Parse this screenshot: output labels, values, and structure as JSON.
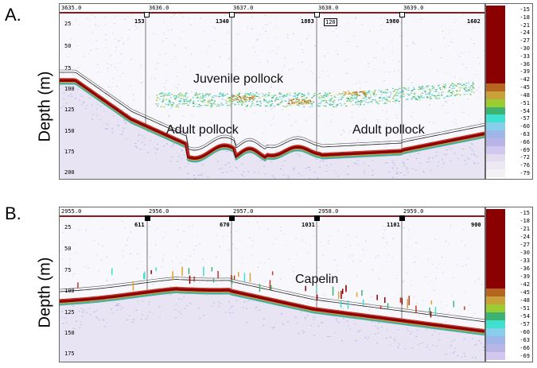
{
  "panelA": {
    "letter": "A.",
    "ylabel": "Depth (m)",
    "intervals": [
      "3635.0",
      "3636.0",
      "3637.0",
      "3638.0",
      "3639.0"
    ],
    "counts": [
      "153",
      "1340",
      "1883",
      "1980",
      "1602"
    ],
    "boxed": "120",
    "depths": [
      "25",
      "50",
      "75",
      "100",
      "125",
      "150",
      "175",
      "200"
    ],
    "annotations": {
      "juvenile": "Juvenile pollock",
      "adult1": "Adult pollock",
      "adult2": "Adult pollock"
    },
    "colorbar": [
      "-15",
      "-18",
      "-21",
      "-24",
      "-27",
      "-30",
      "-33",
      "-36",
      "-39",
      "-42",
      "-45",
      "-48",
      "-51",
      "-54",
      "-57",
      "-60",
      "-63",
      "-66",
      "-69",
      "-72",
      "-76",
      "-79"
    ]
  },
  "panelB": {
    "letter": "B.",
    "ylabel": "Depth (m)",
    "intervals": [
      "2955.0",
      "2956.0",
      "2957.0",
      "2958.0",
      "2959.0"
    ],
    "counts": [
      "611",
      "670",
      "1031",
      "1101",
      "900"
    ],
    "depths": [
      "25",
      "50",
      "75",
      "100",
      "125",
      "150",
      "175"
    ],
    "annotations": {
      "capelin": "Capelin"
    },
    "colorbar": [
      "-15",
      "-18",
      "-21",
      "-24",
      "-27",
      "-30",
      "-33",
      "-36",
      "-39",
      "-42",
      "-45",
      "-48",
      "-51",
      "-54",
      "-57",
      "-60",
      "-63",
      "-66",
      "-69"
    ]
  }
}
